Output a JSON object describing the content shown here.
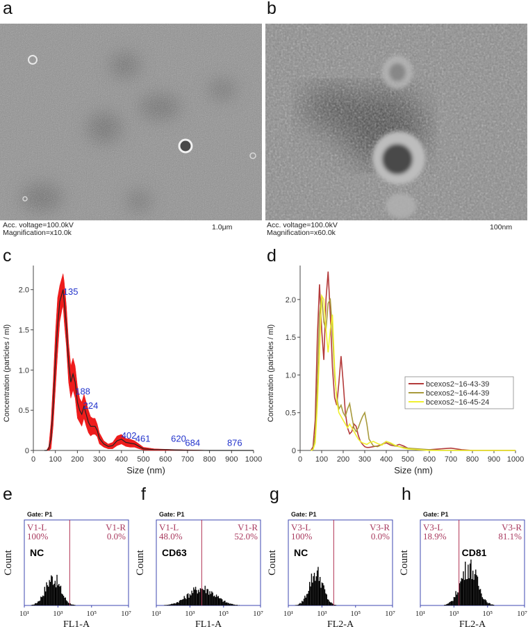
{
  "panels": {
    "a": {
      "label": "a",
      "caption1": "Acc. voltage=100.0kV",
      "caption2": "Magnification=x10.0k",
      "scale": "1.0μm"
    },
    "b": {
      "label": "b",
      "caption1": "Acc. voltage=100.0kV",
      "caption2": "Magnification=x60.0k",
      "scale": "100nm"
    },
    "c": {
      "label": "c"
    },
    "d": {
      "label": "d"
    },
    "e": {
      "label": "e"
    },
    "f": {
      "label": "f"
    },
    "g": {
      "label": "g"
    },
    "h": {
      "label": "h"
    }
  },
  "chart_data": [
    {
      "type": "area",
      "panel": "c",
      "xlabel": "Size (nm)",
      "ylabel": "Concentration (particles / ml)",
      "xlim": [
        0,
        1000
      ],
      "ylim": [
        0,
        2.3
      ],
      "xticks": [
        "0",
        "100",
        "200",
        "300",
        "400",
        "500",
        "600",
        "700",
        "800",
        "900",
        "1000"
      ],
      "yticks": [
        "0",
        "0.5",
        "1.0",
        "1.5",
        "2.0"
      ],
      "colors": {
        "band": "#ee1c1c",
        "mean": "#222222",
        "peak_label": "#2233cc"
      },
      "series": [
        {
          "x": [
            50,
            60,
            70,
            80,
            90,
            100,
            110,
            120,
            130,
            135,
            140,
            150,
            160,
            170,
            180,
            190,
            200,
            210,
            220,
            230,
            240,
            250,
            260,
            270,
            280,
            290,
            300,
            320,
            340,
            360,
            380,
            400,
            420,
            440,
            460,
            480,
            500,
            550,
            600,
            650,
            700,
            750,
            800,
            850,
            900,
            950,
            1000
          ],
          "y": [
            0,
            0,
            0.02,
            0.15,
            0.55,
            1.1,
            1.55,
            1.85,
            1.95,
            2.0,
            1.85,
            1.55,
            1.1,
            0.85,
            0.95,
            0.85,
            0.6,
            0.5,
            0.45,
            0.55,
            0.45,
            0.35,
            0.3,
            0.3,
            0.3,
            0.25,
            0.15,
            0.08,
            0.05,
            0.06,
            0.12,
            0.14,
            0.1,
            0.09,
            0.08,
            0.05,
            0.02,
            0.01,
            0.01,
            0.005,
            0.003,
            0.002,
            0,
            0,
            0,
            0,
            0
          ],
          "upper": [
            0,
            0,
            0.05,
            0.35,
            0.85,
            1.45,
            1.9,
            2.05,
            2.15,
            2.2,
            2.1,
            1.8,
            1.35,
            1.05,
            1.15,
            1.05,
            0.8,
            0.65,
            0.6,
            0.7,
            0.6,
            0.5,
            0.42,
            0.4,
            0.4,
            0.33,
            0.22,
            0.12,
            0.08,
            0.1,
            0.18,
            0.2,
            0.15,
            0.14,
            0.12,
            0.08,
            0.04,
            0.02,
            0.015,
            0.01,
            0.008,
            0.005,
            0,
            0,
            0,
            0,
            0
          ],
          "lower": [
            0,
            0,
            0,
            0.02,
            0.3,
            0.75,
            1.2,
            1.6,
            1.75,
            1.8,
            1.6,
            1.3,
            0.85,
            0.65,
            0.75,
            0.65,
            0.4,
            0.35,
            0.3,
            0.4,
            0.3,
            0.22,
            0.18,
            0.2,
            0.2,
            0.17,
            0.08,
            0.04,
            0.02,
            0.02,
            0.06,
            0.08,
            0.05,
            0.04,
            0.04,
            0.02,
            0.005,
            0,
            0,
            0,
            0,
            0,
            0,
            0,
            0,
            0,
            0
          ]
        }
      ],
      "annotations": [
        {
          "text": "135",
          "x": 135,
          "y": 1.92
        },
        {
          "text": "188",
          "x": 190,
          "y": 0.68
        },
        {
          "text": "224",
          "x": 226,
          "y": 0.5
        },
        {
          "text": "402",
          "x": 400,
          "y": 0.13
        },
        {
          "text": "461",
          "x": 463,
          "y": 0.09
        },
        {
          "text": "620",
          "x": 625,
          "y": 0.09
        },
        {
          "text": "684",
          "x": 689,
          "y": 0.04
        },
        {
          "text": "876",
          "x": 880,
          "y": 0.04
        }
      ]
    },
    {
      "type": "line",
      "panel": "d",
      "xlabel": "Size (nm)",
      "ylabel": "Concentration (particles / ml)",
      "xlim": [
        0,
        1000
      ],
      "ylim": [
        0,
        2.45
      ],
      "xticks": [
        "0",
        "100",
        "200",
        "300",
        "400",
        "500",
        "600",
        "700",
        "800",
        "900",
        "1000"
      ],
      "yticks": [
        "0",
        "0.5",
        "1.0",
        "1.5",
        "2.0"
      ],
      "legend_position": "right",
      "x": [
        50,
        60,
        70,
        80,
        90,
        100,
        110,
        120,
        130,
        140,
        150,
        160,
        170,
        180,
        190,
        200,
        210,
        220,
        230,
        240,
        250,
        260,
        270,
        280,
        290,
        300,
        310,
        320,
        340,
        360,
        380,
        400,
        420,
        440,
        460,
        480,
        500,
        550,
        600,
        650,
        700,
        750,
        800,
        1000
      ],
      "series": [
        {
          "name": "bcexos2~16-43-39",
          "color": "#b33a3a",
          "values": [
            0,
            0.05,
            0.4,
            1.5,
            2.2,
            1.6,
            1.2,
            2.0,
            2.37,
            1.8,
            1.1,
            0.7,
            0.6,
            0.9,
            1.25,
            0.9,
            0.5,
            0.3,
            0.22,
            0.25,
            0.35,
            0.32,
            0.2,
            0.12,
            0.08,
            0.05,
            0.04,
            0.04,
            0.05,
            0.06,
            0.08,
            0.1,
            0.07,
            0.06,
            0.08,
            0.06,
            0.03,
            0.01,
            0.01,
            0.02,
            0.03,
            0.01,
            0,
            0
          ]
        },
        {
          "name": "bcexos2~16-44-39",
          "color": "#a89a3c",
          "values": [
            0,
            0.02,
            0.2,
            0.9,
            1.8,
            2.05,
            1.7,
            1.6,
            1.95,
            2.0,
            1.6,
            1.0,
            0.7,
            0.55,
            0.6,
            0.5,
            0.45,
            0.55,
            0.62,
            0.45,
            0.3,
            0.25,
            0.3,
            0.38,
            0.45,
            0.5,
            0.35,
            0.15,
            0.06,
            0.05,
            0.08,
            0.12,
            0.09,
            0.06,
            0.05,
            0.04,
            0.03,
            0.02,
            0.01,
            0,
            0,
            0,
            0,
            0
          ]
        },
        {
          "name": "bcexos2~16-45-24",
          "color": "#f0f030",
          "values": [
            0,
            0.01,
            0.1,
            0.6,
            1.3,
            2.05,
            2.0,
            1.6,
            1.3,
            1.6,
            1.8,
            1.1,
            0.65,
            0.5,
            0.45,
            0.4,
            0.35,
            0.3,
            0.35,
            0.3,
            0.25,
            0.2,
            0.15,
            0.12,
            0.1,
            0.09,
            0.08,
            0.1,
            0.12,
            0.09,
            0.07,
            0.12,
            0.1,
            0.07,
            0.05,
            0.03,
            0.02,
            0.01,
            0,
            0,
            0,
            0,
            0,
            0
          ]
        }
      ]
    },
    {
      "type": "bar",
      "panel": "e",
      "gate": "Gate: P1",
      "xlabel": "FL1-A",
      "ylabel": "Count",
      "xticks": [
        "10¹",
        "10³",
        "10⁵",
        "10⁷·²"
      ],
      "left_region": "V1-L",
      "left_pct": "100%",
      "right_region": "V1-R",
      "right_pct": "0.0%",
      "sample": "NC",
      "gate_x_log10": 3.7,
      "peak_log10": 2.7,
      "spread": 0.45,
      "peak_height": 0.32
    },
    {
      "type": "bar",
      "panel": "f",
      "gate": "Gate: P1",
      "xlabel": "FL1-A",
      "ylabel": "Count",
      "xticks": [
        "10¹",
        "10³",
        "10⁵",
        "10⁷·²"
      ],
      "left_region": "V1-L",
      "left_pct": "48.0%",
      "right_region": "V1-R",
      "right_pct": "52.0%",
      "sample": "CD63",
      "gate_x_log10": 3.7,
      "peak_log10": 3.7,
      "spread": 0.8,
      "peak_height": 0.2
    },
    {
      "type": "bar",
      "panel": "g",
      "gate": "Gate: P1",
      "xlabel": "FL2-A",
      "ylabel": "Count",
      "xticks": [
        "10¹",
        "10³",
        "10⁵",
        "10⁷·²"
      ],
      "left_region": "V3-L",
      "left_pct": "100%",
      "right_region": "V3-R",
      "right_pct": "0.0%",
      "sample": "NC",
      "gate_x_log10": 3.7,
      "peak_log10": 2.65,
      "spread": 0.4,
      "peak_height": 0.38
    },
    {
      "type": "bar",
      "panel": "h",
      "gate": "Gate: P1",
      "xlabel": "FL2-A",
      "ylabel": "Count",
      "xticks": [
        "10¹",
        "10³",
        "10⁵",
        "10⁷·²"
      ],
      "left_region": "V3-L",
      "left_pct": "18.9%",
      "right_region": "V3-R",
      "right_pct": "81.1%",
      "sample": "CD81",
      "gate_x_log10": 3.3,
      "peak_log10": 3.9,
      "spread": 0.5,
      "peak_height": 0.45
    }
  ]
}
